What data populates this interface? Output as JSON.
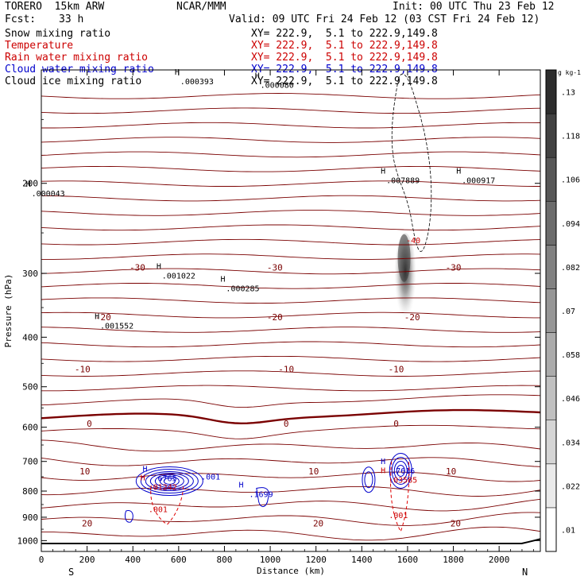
{
  "header": {
    "model": "TORERO  15km ARW",
    "org": "NCAR/MMM",
    "init": "Init: 00 UTC Thu 23 Feb 12",
    "fcst_label": "Fcst:",
    "fcst_value": "33 h",
    "valid": "Valid: 09 UTC Fri 24 Feb 12 (03 CST Fri 24 Feb 12)"
  },
  "fields": [
    {
      "name": "Snow mixing ratio",
      "xy": "XY= 222.9,  5.1 to 222.9,149.8",
      "color": "#000000"
    },
    {
      "name": "Temperature",
      "xy": "XY= 222.9,  5.1 to 222.9,149.8",
      "color": "#cc0000"
    },
    {
      "name": "Rain water mixing ratio",
      "xy": "XY= 222.9,  5.1 to 222.9,149.8",
      "color": "#cc0000"
    },
    {
      "name": "Cloud water mixing ratio",
      "xy": "XY= 222.9,  5.1 to 222.9,149.8",
      "color": "#0000cc"
    },
    {
      "name": "Cloud ice mixing ratio",
      "xy": "XY= 222.9,  5.1 to 222.9,149.8",
      "color": "#000000"
    }
  ],
  "chart_data": {
    "type": "contour",
    "xlabel": "Distance (km)",
    "ylabel": "Pressure (hPa)",
    "x_ticks": [
      0,
      200,
      400,
      600,
      800,
      1000,
      1200,
      1400,
      1600,
      1800,
      2000
    ],
    "y_ticks": [
      200,
      300,
      400,
      500,
      600,
      700,
      800,
      900,
      1000
    ],
    "xlim": [
      0,
      2180
    ],
    "ylim": [
      1050,
      120
    ],
    "y_scale": "log",
    "end_labels": {
      "left": "S",
      "right": "N"
    },
    "colorbar": {
      "unit": "g kg-1",
      "ticks": [
        ".01",
        ".022",
        ".034",
        ".046",
        ".058",
        ".07",
        ".082",
        ".094",
        ".106",
        ".118",
        ".13"
      ]
    },
    "temperature_contours": [
      {
        "value": -30,
        "label": "-30",
        "label_x": [
          420,
          1020,
          1800
        ]
      },
      {
        "value": -20,
        "label": "-20",
        "label_x": [
          270,
          1020,
          1620
        ]
      },
      {
        "value": -10,
        "label": "-10",
        "label_x": [
          180,
          1070,
          1550
        ]
      },
      {
        "value": 0,
        "label": "0",
        "label_x": [
          210,
          1070,
          1550
        ]
      },
      {
        "value": 10,
        "label": "10",
        "label_x": [
          190,
          1190,
          1790
        ]
      },
      {
        "value": 20,
        "label": "20",
        "label_x": [
          200,
          1210,
          1810
        ]
      }
    ],
    "maxima_labels": [
      {
        "text": ".000043",
        "x": 30,
        "p": 212,
        "color": "#000000"
      },
      {
        "text": ".000393",
        "x": 680,
        "p": 128,
        "color": "#000000"
      },
      {
        "text": ".000080",
        "x": 1030,
        "p": 130,
        "color": "#000000"
      },
      {
        "text": ".001022",
        "x": 600,
        "p": 307,
        "color": "#000000"
      },
      {
        "text": ".000285",
        "x": 880,
        "p": 325,
        "color": "#000000"
      },
      {
        "text": ".001552",
        "x": 330,
        "p": 385,
        "color": "#000000"
      },
      {
        "text": ".007889",
        "x": 1580,
        "p": 200,
        "color": "#000000"
      },
      {
        "text": ".000917",
        "x": 1910,
        "p": 200,
        "color": "#000000"
      },
      {
        "text": ".6765",
        "x": 540,
        "p": 765,
        "color": "#0000cc"
      },
      {
        "text": ".1699",
        "x": 960,
        "p": 822,
        "color": "#0000cc"
      },
      {
        "text": ".7616",
        "x": 1580,
        "p": 740,
        "color": "#0000cc"
      },
      {
        "text": ".01242",
        "x": 530,
        "p": 795,
        "color": "#cc0000"
      },
      {
        "text": ".03585",
        "x": 1580,
        "p": 770,
        "color": "#cc0000"
      }
    ],
    "contour_labels": [
      {
        "text": ".001",
        "x": 740,
        "p": 760,
        "color": "#0000cc"
      },
      {
        "text": ".001",
        "x": 510,
        "p": 880,
        "color": "#cc0000"
      },
      {
        "text": ".001",
        "x": 1560,
        "p": 903,
        "color": "#cc0000"
      },
      {
        "text": "-40",
        "x": 1625,
        "p": 262,
        "color": "#cc0000"
      }
    ]
  }
}
